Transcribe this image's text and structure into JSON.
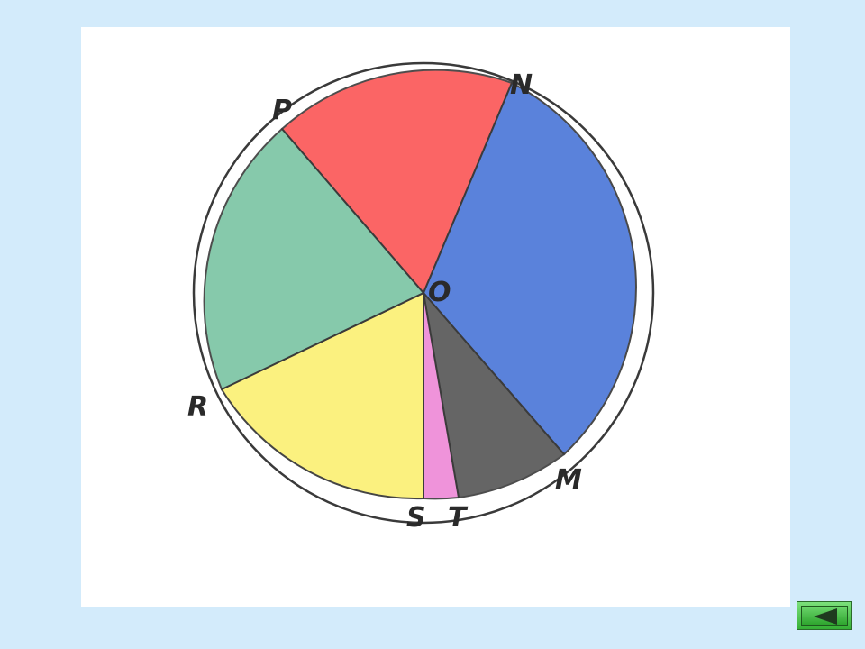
{
  "labels": {
    "center": "O",
    "n": "N",
    "p": "P",
    "r": "R",
    "s": "S",
    "t": "T",
    "m": "M"
  },
  "colors": {
    "background": "#d3ebfb",
    "paper": "#ffffff",
    "sector_red": "#fb5555",
    "sector_blue": "#4d78d8",
    "sector_black": "#555555",
    "sector_pink": "#ee88d6",
    "sector_yellow": "#fbf179",
    "sector_green": "#79c4a2",
    "outline": "#3a3a3a",
    "button_green": "#35b035"
  },
  "controls": {
    "back_button_icon": "left-triangle-icon"
  }
}
